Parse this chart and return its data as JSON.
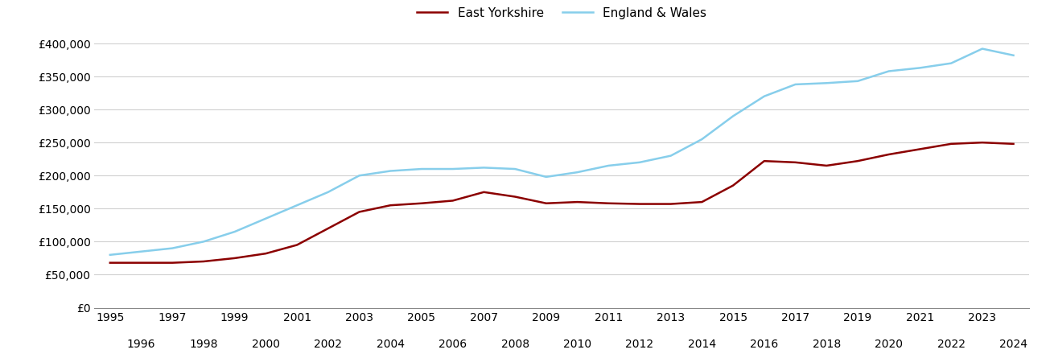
{
  "years": [
    1995,
    1996,
    1997,
    1998,
    1999,
    2000,
    2001,
    2002,
    2003,
    2004,
    2005,
    2006,
    2007,
    2008,
    2009,
    2010,
    2011,
    2012,
    2013,
    2014,
    2015,
    2016,
    2017,
    2018,
    2019,
    2020,
    2021,
    2022,
    2023,
    2024
  ],
  "east_yorkshire": [
    68000,
    68000,
    68000,
    70000,
    75000,
    82000,
    95000,
    120000,
    145000,
    155000,
    158000,
    162000,
    175000,
    168000,
    158000,
    160000,
    158000,
    157000,
    157000,
    160000,
    185000,
    222000,
    220000,
    215000,
    222000,
    232000,
    240000,
    248000,
    250000,
    248000
  ],
  "england_wales": [
    80000,
    85000,
    90000,
    100000,
    115000,
    135000,
    155000,
    175000,
    200000,
    207000,
    210000,
    210000,
    212000,
    210000,
    198000,
    205000,
    215000,
    220000,
    230000,
    255000,
    290000,
    320000,
    338000,
    340000,
    343000,
    358000,
    363000,
    370000,
    392000,
    382000
  ],
  "east_yorkshire_color": "#8B0000",
  "england_wales_color": "#87CEEB",
  "east_yorkshire_label": "East Yorkshire",
  "england_wales_label": "England & Wales",
  "ylim": [
    0,
    400000
  ],
  "yticks": [
    0,
    50000,
    100000,
    150000,
    200000,
    250000,
    300000,
    350000,
    400000
  ],
  "ytick_labels": [
    "£0",
    "£50,000",
    "£100,000",
    "£150,000",
    "£200,000",
    "£250,000",
    "£300,000",
    "£350,000",
    "£400,000"
  ],
  "xlim_start": 1994.5,
  "xlim_end": 2024.5,
  "odd_years": [
    1995,
    1997,
    1999,
    2001,
    2003,
    2005,
    2007,
    2009,
    2011,
    2013,
    2015,
    2017,
    2019,
    2021,
    2023
  ],
  "even_years": [
    1996,
    1998,
    2000,
    2002,
    2004,
    2006,
    2008,
    2010,
    2012,
    2014,
    2016,
    2018,
    2020,
    2022,
    2024
  ],
  "line_width": 1.8,
  "background_color": "#ffffff",
  "grid_color": "#d0d0d0",
  "legend_fontsize": 11,
  "tick_fontsize": 10
}
